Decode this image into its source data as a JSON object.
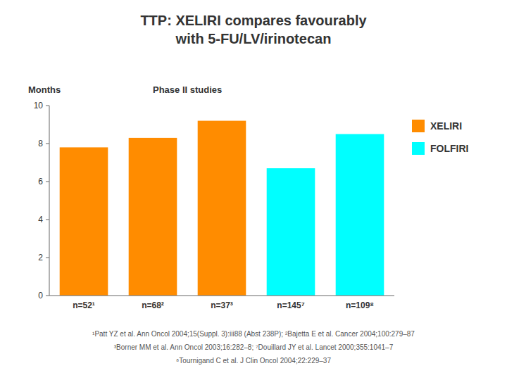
{
  "chart_data": {
    "type": "bar",
    "title": "TTP: XELIRI compares favourably",
    "subtitle": "with 5-FU/LV/irinotecan",
    "y_label": "Months",
    "annotations": [
      {
        "text": "Phase II studies"
      }
    ],
    "categories": [
      "n=52¹",
      "n=68²",
      "n=37³",
      "n=145⁷",
      "n=109⁸"
    ],
    "series": [
      {
        "name": "XELIRI",
        "color": "#FF8C00",
        "values": [
          7.8,
          8.3,
          9.2,
          null,
          null
        ]
      },
      {
        "name": "FOLFIRI",
        "color": "#00FFFF",
        "values": [
          null,
          null,
          null,
          6.7,
          8.5
        ]
      }
    ],
    "ylim": [
      0,
      10
    ],
    "yticks": [
      0,
      2,
      4,
      6,
      8,
      10
    ],
    "grid": false,
    "legend": "right",
    "footnotes": [
      "¹Patt YZ et al. Ann Oncol 2004;15(Suppl. 3):iii88 (Abst 238P); ²Bajetta E et al. Cancer 2004;100:279–87",
      "³Borner MM et al. Ann Oncol 2003;16:282–8; ⁷Douillard JY et al. Lancet 2000;355:1041–7",
      "⁸Tournigand C et al. J Clin Oncol 2004;22:229–37"
    ]
  }
}
